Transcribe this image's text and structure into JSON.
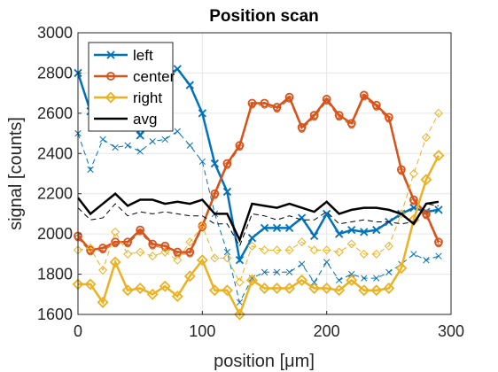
{
  "chart_data": {
    "type": "line",
    "title": "Position scan",
    "xlabel": "position [μm]",
    "ylabel": "signal [counts]",
    "xlim": [
      0,
      300
    ],
    "ylim": [
      1600,
      3000
    ],
    "xticks": [
      0,
      100,
      200,
      300
    ],
    "yticks": [
      1600,
      1800,
      2000,
      2200,
      2400,
      2600,
      2800,
      3000
    ],
    "grid": true,
    "legend_position": "top-left",
    "x": [
      0,
      10,
      20,
      30,
      40,
      50,
      60,
      70,
      80,
      90,
      100,
      110,
      120,
      130,
      140,
      150,
      160,
      170,
      180,
      190,
      200,
      210,
      220,
      230,
      240,
      250,
      260,
      270,
      280,
      290
    ],
    "series": [
      {
        "name": "left",
        "color": "#0072bd",
        "marker": "x",
        "values": [
          2800,
          2610,
          2650,
          2590,
          2600,
          2490,
          2570,
          2780,
          2820,
          2740,
          2600,
          2350,
          2210,
          1870,
          1980,
          2030,
          2030,
          2030,
          2080,
          1990,
          2100,
          2000,
          2020,
          2010,
          2020,
          2060,
          2100,
          2130,
          2110,
          2120
        ],
        "dashed_values": [
          2500,
          2320,
          2470,
          2430,
          2440,
          2410,
          2460,
          2470,
          2510,
          2440,
          2360,
          2100,
          1910,
          1660,
          1780,
          1810,
          1810,
          1810,
          1850,
          1760,
          1860,
          1770,
          1800,
          1780,
          1780,
          1810,
          1850,
          1900,
          1870,
          1890
        ]
      },
      {
        "name": "center",
        "color": "#d95319",
        "marker": "o",
        "values": [
          1990,
          1920,
          1930,
          1960,
          1960,
          2020,
          1950,
          1940,
          1910,
          1910,
          2040,
          2200,
          2350,
          2440,
          2650,
          2650,
          2630,
          2680,
          2530,
          2590,
          2670,
          2590,
          2550,
          2690,
          2640,
          2580,
          2320,
          2170,
          2100,
          1960
        ],
        "dashed_values": [
          1980,
          1910,
          1920,
          1950,
          1950,
          2010,
          1940,
          1930,
          1900,
          1900,
          2030,
          2190,
          2340,
          2430,
          2640,
          2640,
          2620,
          2670,
          2520,
          2580,
          2660,
          2580,
          2540,
          2680,
          2630,
          2570,
          2310,
          2160,
          2090,
          1950
        ]
      },
      {
        "name": "right",
        "color": "#edb120",
        "marker": "d",
        "values": [
          1750,
          1750,
          1660,
          1860,
          1720,
          1730,
          1700,
          1740,
          1690,
          1790,
          1870,
          1720,
          1720,
          1600,
          1770,
          1730,
          1730,
          1730,
          1770,
          1730,
          1730,
          1720,
          1770,
          1720,
          1720,
          1730,
          1830,
          2070,
          2270,
          2390
        ],
        "dashed_values": [
          1920,
          1930,
          1820,
          2010,
          1900,
          1910,
          1890,
          1910,
          1870,
          1960,
          2040,
          1880,
          1880,
          1760,
          1940,
          1920,
          1920,
          1920,
          1960,
          1920,
          1920,
          1910,
          1950,
          1900,
          1900,
          1940,
          2100,
          2300,
          2480,
          2600
        ]
      },
      {
        "name": "avg",
        "color": "#000000",
        "marker": "none",
        "values": [
          2180,
          2100,
          2150,
          2200,
          2140,
          2170,
          2170,
          2150,
          2160,
          2150,
          2170,
          2100,
          2100,
          1970,
          2150,
          2140,
          2130,
          2150,
          2130,
          2110,
          2160,
          2100,
          2120,
          2130,
          2130,
          2120,
          2100,
          2050,
          2150,
          2160
        ],
        "dashed_values": [
          2130,
          2070,
          2080,
          2150,
          2090,
          2110,
          2100,
          2110,
          2100,
          2090,
          2090,
          2050,
          2050,
          1940,
          2100,
          2090,
          2070,
          2090,
          2070,
          2070,
          2110,
          2050,
          2060,
          2070,
          2060,
          2060,
          2050,
          2060,
          2150,
          2140
        ]
      }
    ]
  }
}
